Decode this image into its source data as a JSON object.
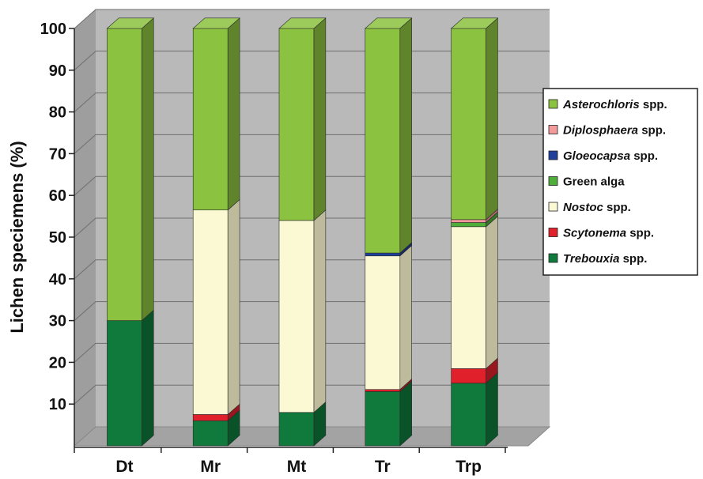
{
  "chart_data": {
    "type": "bar",
    "stacked": true,
    "style": "3d",
    "categories": [
      "Dt",
      "Mr",
      "Mt",
      "Tr",
      "Trp"
    ],
    "ylabel": "Lichen speciemens (%)",
    "xlabel": "",
    "ylim": [
      0,
      100
    ],
    "yticks": [
      10,
      20,
      30,
      40,
      50,
      60,
      70,
      80,
      90,
      100
    ],
    "grid": true,
    "legend_position": "right",
    "series": [
      {
        "key": "trebouxia",
        "name_italic": "Trebouxia",
        "name_suffix": " spp.",
        "color": "#0f7a3c",
        "values": [
          30,
          6,
          8,
          13,
          15
        ]
      },
      {
        "key": "scytonema",
        "name_italic": "Scytonema",
        "name_suffix": " spp.",
        "color": "#e0202a",
        "values": [
          0,
          1.5,
          0,
          0.5,
          3.5
        ]
      },
      {
        "key": "nostoc",
        "name_italic": "Nostoc",
        "name_suffix": " spp.",
        "color": "#fbf8d4",
        "values": [
          0,
          49,
          46,
          32,
          34
        ]
      },
      {
        "key": "green_alga",
        "name_italic": "",
        "name_suffix": "Green alga",
        "color": "#4fae3a",
        "values": [
          0,
          0,
          0,
          0,
          1
        ]
      },
      {
        "key": "gloeocapsa",
        "name_italic": "Gloeocapsa",
        "name_suffix": " spp.",
        "color": "#1f3f9a",
        "values": [
          0,
          0,
          0,
          0.7,
          0
        ]
      },
      {
        "key": "diplosphaera",
        "name_italic": "Diplosphaera",
        "name_suffix": " spp.",
        "color": "#f39a9a",
        "values": [
          0,
          0,
          0,
          0,
          0.7
        ]
      },
      {
        "key": "asterochloris",
        "name_italic": "Asterochloris",
        "name_suffix": " spp.",
        "color": "#8bc23f",
        "values": [
          70,
          43.5,
          46,
          53.8,
          45.8
        ]
      }
    ],
    "legend_order": [
      "asterochloris",
      "diplosphaera",
      "gloeocapsa",
      "green_alga",
      "nostoc",
      "scytonema",
      "trebouxia"
    ]
  }
}
